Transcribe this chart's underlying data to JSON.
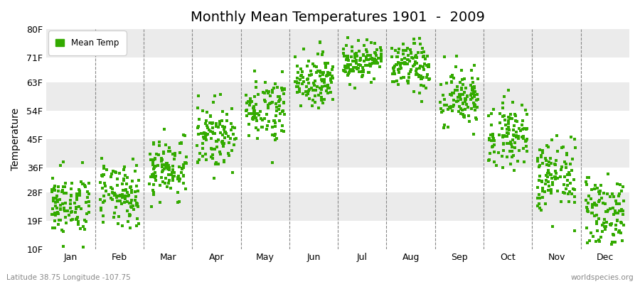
{
  "title": "Monthly Mean Temperatures 1901  -  2009",
  "ylabel": "Temperature",
  "xlabel_labels": [
    "Jan",
    "Feb",
    "Mar",
    "Apr",
    "May",
    "Jun",
    "Jul",
    "Aug",
    "Sep",
    "Oct",
    "Nov",
    "Dec"
  ],
  "ytick_labels": [
    "10F",
    "19F",
    "28F",
    "36F",
    "45F",
    "54F",
    "63F",
    "71F",
    "80F"
  ],
  "ytick_values": [
    10,
    19,
    28,
    36,
    45,
    54,
    63,
    71,
    80
  ],
  "dot_color": "#33AA00",
  "bg_color": "#FFFFFF",
  "plot_bg_color": "#FFFFFF",
  "band_color1": "#FFFFFF",
  "band_color2": "#EBEBEB",
  "legend_label": "Mean Temp",
  "subtitle_left": "Latitude 38.75 Longitude -107.75",
  "subtitle_right": "worldspecies.org",
  "monthly_means": [
    24,
    27,
    36,
    46,
    55,
    64,
    70,
    68,
    58,
    47,
    33,
    22
  ],
  "monthly_stds": [
    5,
    5,
    5,
    5,
    5,
    4,
    3,
    4,
    5,
    5,
    6,
    6
  ],
  "n_points": 109,
  "seed": 42
}
